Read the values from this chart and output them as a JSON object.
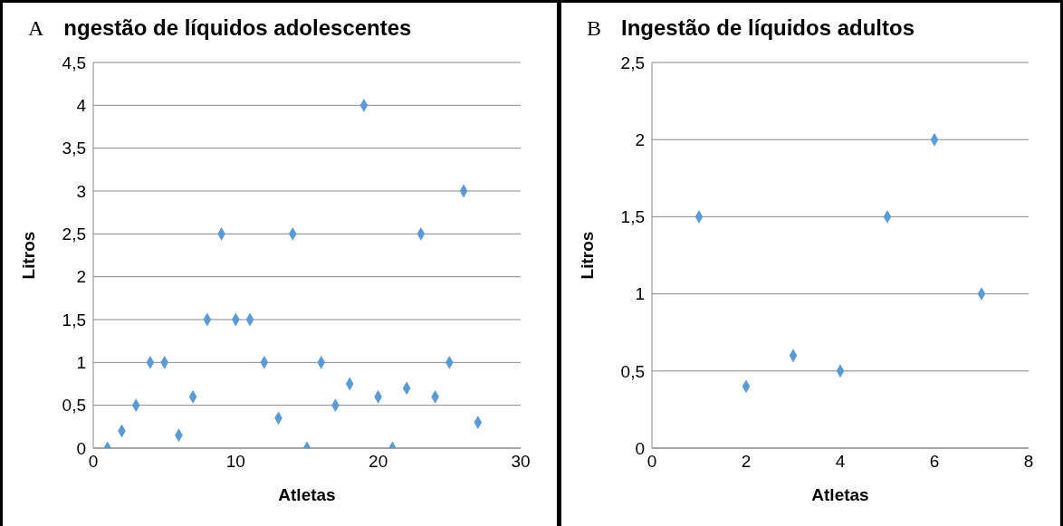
{
  "chart_data": [
    {
      "type": "scatter",
      "title": "ngestão de líquidos adolescentes",
      "annotations": [
        "A"
      ],
      "xlabel": "Atletas",
      "ylabel": "Litros",
      "x": [
        1,
        2,
        3,
        4,
        5,
        6,
        7,
        8,
        9,
        10,
        11,
        12,
        13,
        14,
        15,
        16,
        17,
        18,
        19,
        20,
        21,
        22,
        23,
        24,
        25,
        26,
        27
      ],
      "series": [
        {
          "color": "#5b9bd5",
          "values": [
            0,
            0.2,
            0.5,
            1,
            1,
            0.15,
            0.6,
            1.5,
            2.5,
            1.5,
            1.5,
            1,
            0.35,
            2.5,
            0,
            1,
            0.5,
            0.75,
            4,
            0.6,
            0,
            0.7,
            2.5,
            0.6,
            1,
            3,
            0.3
          ]
        }
      ],
      "xlim": [
        0,
        30
      ],
      "xticks": [
        0,
        10,
        20,
        30
      ],
      "ylim": [
        0,
        4.5
      ],
      "yticks": [
        0,
        {
          "value": 0.5,
          "label": "0,5"
        },
        1,
        {
          "value": 1.5,
          "label": "1,5"
        },
        2,
        {
          "value": 2.5,
          "label": "2,5"
        },
        3,
        {
          "value": 3.5,
          "label": "3,5"
        },
        4,
        {
          "value": 4.5,
          "label": "4,5"
        }
      ],
      "grid": "y",
      "marker": "diamond"
    },
    {
      "type": "scatter",
      "title": "Ingestão de líquidos adultos",
      "annotations": [
        "B"
      ],
      "xlabel": "Atletas",
      "ylabel": "Litros",
      "x": [
        1,
        2,
        3,
        4,
        5,
        6,
        7
      ],
      "series": [
        {
          "color": "#5b9bd5",
          "values": [
            1.5,
            0.4,
            0.6,
            0.5,
            1.5,
            2,
            1
          ]
        }
      ],
      "xlim": [
        0,
        8
      ],
      "xticks": [
        0,
        2,
        4,
        6,
        8
      ],
      "ylim": [
        0,
        2.5
      ],
      "yticks": [
        0,
        {
          "value": 0.5,
          "label": "0,5"
        },
        1,
        {
          "value": 1.5,
          "label": "1,5"
        },
        2,
        {
          "value": 2.5,
          "label": "2,5"
        }
      ],
      "grid": "y",
      "marker": "diamond"
    }
  ]
}
